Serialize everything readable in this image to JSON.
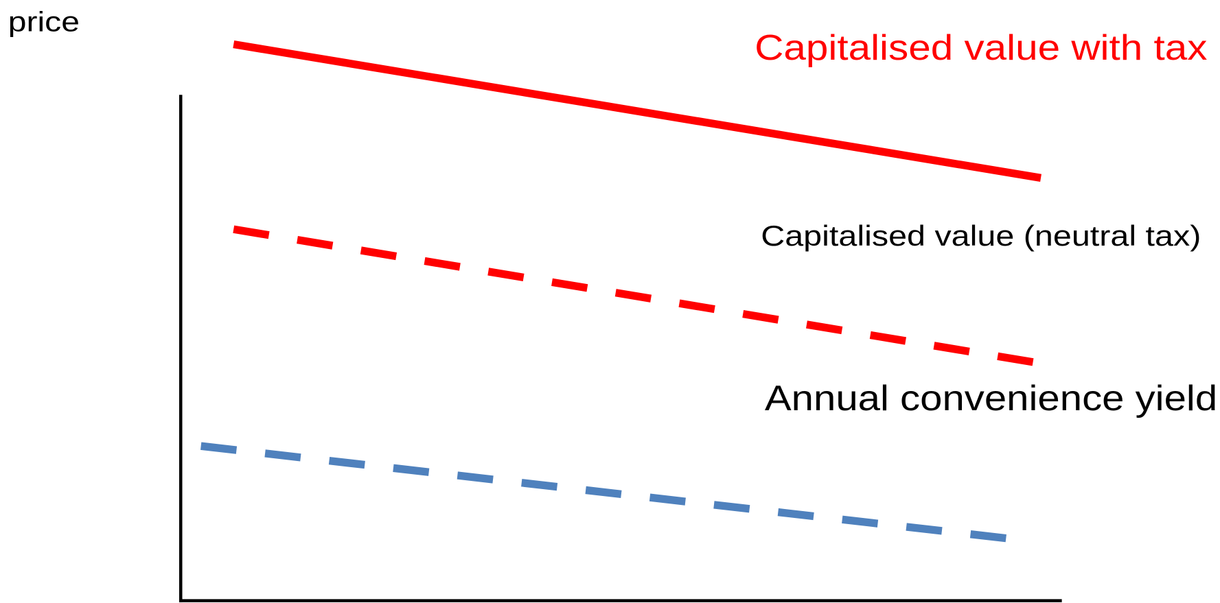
{
  "axis_label": "price",
  "curves": [
    {
      "label": "Capitalised value with tax"
    },
    {
      "label": "Capitalised value (neutral tax)"
    },
    {
      "label": "Annual convenience yield"
    }
  ]
}
